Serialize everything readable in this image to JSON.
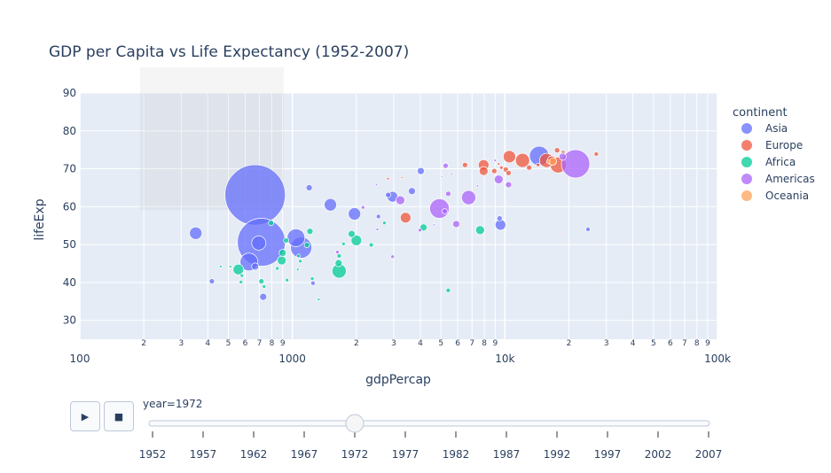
{
  "chart_data": {
    "type": "scatter",
    "title": "GDP per Capita vs Life Expectancy (1952-2007)",
    "xlabel": "gdpPercap",
    "ylabel": "lifeExp",
    "xscale": "log",
    "xlim": [
      100,
      100000
    ],
    "ylim": [
      25,
      90
    ],
    "grid": true,
    "x_tick_values": [
      100,
      1000,
      10000,
      100000
    ],
    "x_tick_labels": [
      "100",
      "1000",
      "10k",
      "100k"
    ],
    "x_minor_labels": [
      "2",
      "3",
      "4",
      "5",
      "6",
      "7",
      "8",
      "9"
    ],
    "y_ticks": [
      30,
      40,
      50,
      60,
      70,
      80,
      90
    ],
    "size_variable": "pop (millions)",
    "legend": {
      "title": "continent",
      "placement": "right"
    },
    "series": [
      {
        "name": "Asia",
        "color": "#636efa",
        "points": [
          [
            668,
            63.1,
            862
          ],
          [
            715,
            50.6,
            543
          ],
          [
            695,
            50.4,
            47.7
          ],
          [
            351,
            53.0,
            36.5
          ],
          [
            418,
            40.3,
            6.7
          ],
          [
            625,
            45.4,
            74.6
          ],
          [
            668,
            44.2,
            11.9
          ],
          [
            729,
            36.2,
            11.9
          ],
          [
            1040,
            51.8,
            74.6
          ],
          [
            1100,
            49.2,
            107
          ],
          [
            1250,
            39.8,
            4.7
          ],
          [
            1200,
            65.0,
            9.1
          ],
          [
            1510,
            60.5,
            36.5
          ],
          [
            1960,
            58.1,
            36.5
          ],
          [
            2540,
            57.4,
            4.7
          ],
          [
            4020,
            69.4,
            11.9
          ],
          [
            2960,
            62.6,
            26.8
          ],
          [
            2820,
            63.1,
            6.7
          ],
          [
            3650,
            64.1,
            11.9
          ],
          [
            7430,
            65.5,
            1.1
          ],
          [
            14500,
            73.4,
            90
          ],
          [
            9530,
            55.2,
            26.8
          ],
          [
            9440,
            56.9,
            6.7
          ],
          [
            24600,
            54.0,
            4.7
          ]
        ]
      },
      {
        "name": "Europe",
        "color": "#EF553B",
        "points": [
          [
            2820,
            67.4,
            1.7
          ],
          [
            3280,
            67.7,
            1.1
          ],
          [
            3410,
            57.1,
            26.8
          ],
          [
            6490,
            71.0,
            6.7
          ],
          [
            7940,
            71.0,
            26.8
          ],
          [
            7940,
            69.4,
            18.6
          ],
          [
            8910,
            69.4,
            6.7
          ],
          [
            10500,
            73.2,
            36.5
          ],
          [
            12100,
            72.2,
            47.7
          ],
          [
            10100,
            69.8,
            6.7
          ],
          [
            10400,
            68.9,
            6.7
          ],
          [
            9350,
            71.3,
            1.7
          ],
          [
            9620,
            70.3,
            3.0
          ],
          [
            13000,
            70.3,
            6.7
          ],
          [
            14300,
            71.0,
            3.0
          ],
          [
            15700,
            72.2,
            47.7
          ],
          [
            16600,
            72.2,
            18.6
          ],
          [
            17800,
            71.0,
            60.4
          ],
          [
            17600,
            74.9,
            6.7
          ],
          [
            18800,
            74.4,
            3.0
          ],
          [
            26900,
            73.9,
            4.7
          ]
        ]
      },
      {
        "name": "Africa",
        "color": "#00cc96",
        "points": [
          [
            794,
            55.7,
            6.7
          ],
          [
            1210,
            53.5,
            9.1
          ],
          [
            935,
            51.1,
            6.7
          ],
          [
            1170,
            49.9,
            6.7
          ],
          [
            900,
            47.8,
            11.9
          ],
          [
            891,
            45.8,
            18.6
          ],
          [
            1070,
            47.0,
            3.0
          ],
          [
            1090,
            45.6,
            3.0
          ],
          [
            849,
            43.7,
            3.0
          ],
          [
            557,
            43.4,
            26.8
          ],
          [
            579,
            41.8,
            3.0
          ],
          [
            573,
            40.1,
            3.0
          ],
          [
            460,
            44.2,
            1.7
          ],
          [
            511,
            44.2,
            1.7
          ],
          [
            715,
            40.3,
            6.7
          ],
          [
            736,
            38.9,
            3.0
          ],
          [
            944,
            40.6,
            3.0
          ],
          [
            1060,
            43.4,
            1.7
          ],
          [
            1240,
            41.0,
            3.0
          ],
          [
            1330,
            35.5,
            1.7
          ],
          [
            1900,
            52.8,
            11.9
          ],
          [
            2000,
            51.1,
            26.8
          ],
          [
            2350,
            49.9,
            4.7
          ],
          [
            1660,
            43.0,
            47.7
          ],
          [
            1650,
            45.1,
            11.9
          ],
          [
            1660,
            47.0,
            4.7
          ],
          [
            1740,
            50.2,
            3.0
          ],
          [
            2710,
            55.7,
            3.0
          ],
          [
            4140,
            54.5,
            11.9
          ],
          [
            5410,
            37.9,
            4.7
          ],
          [
            7640,
            53.8,
            18.6
          ],
          [
            20700,
            52.8,
            0.75
          ]
        ]
      },
      {
        "name": "Americas",
        "color": "#ab63fa",
        "points": [
          [
            1630,
            48.0,
            3.0
          ],
          [
            2150,
            59.8,
            3.0
          ],
          [
            2510,
            54.0,
            1.7
          ],
          [
            2960,
            46.8,
            3.0
          ],
          [
            2490,
            65.8,
            1.1
          ],
          [
            3220,
            61.7,
            18.6
          ],
          [
            3980,
            53.8,
            3.0
          ],
          [
            5260,
            70.8,
            6.7
          ],
          [
            4920,
            59.5,
            90
          ],
          [
            5410,
            63.4,
            6.7
          ],
          [
            9000,
            72.2,
            1.7
          ],
          [
            9350,
            67.2,
            18.6
          ],
          [
            10400,
            65.8,
            9.1
          ],
          [
            6750,
            62.4,
            47.7
          ],
          [
            5900,
            55.4,
            11.9
          ],
          [
            4640,
            55.2,
            1.1
          ],
          [
            5620,
            68.6,
            1.1
          ],
          [
            5060,
            67.9,
            0.75
          ],
          [
            18700,
            73.2,
            11.9
          ],
          [
            21500,
            71.3,
            191
          ],
          [
            5210,
            58.8,
            6.7
          ]
        ]
      },
      {
        "name": "Oceania",
        "color": "#FFA15A",
        "points": [
          [
            16800,
            71.9,
            13.2
          ],
          [
            16000,
            71.9,
            2.9
          ]
        ]
      }
    ]
  },
  "slider": {
    "current_label": "year=1972",
    "current_value": 1972,
    "steps": [
      "1952",
      "1957",
      "1962",
      "1967",
      "1972",
      "1977",
      "1982",
      "1987",
      "1992",
      "1997",
      "2002",
      "2007"
    ]
  },
  "controls": {
    "play_icon": "▶",
    "stop_icon": "■"
  }
}
